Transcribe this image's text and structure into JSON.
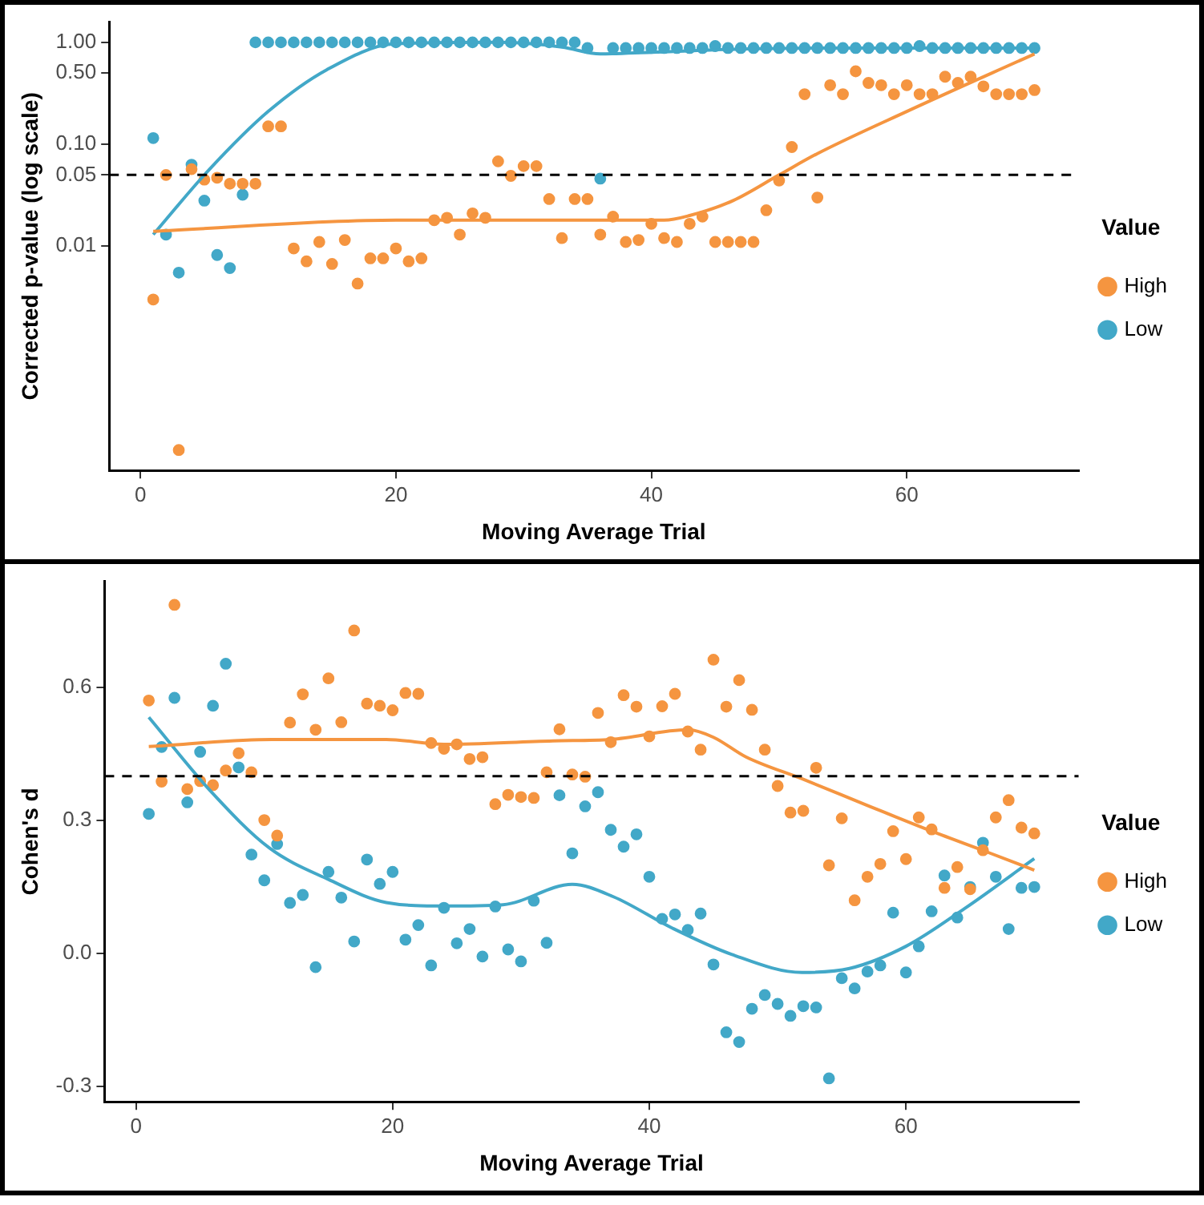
{
  "chart_data": [
    {
      "type": "scatter",
      "xlabel": "Moving Average Trial",
      "ylabel": "Corrected p-value (log scale)",
      "legend_title": "Value",
      "legend": "right",
      "marker": "circle",
      "log": "y",
      "x": [
        1,
        2,
        3,
        4,
        5,
        6,
        7,
        8,
        9,
        10,
        11,
        12,
        13,
        14,
        15,
        16,
        17,
        18,
        19,
        20,
        21,
        22,
        23,
        24,
        25,
        26,
        27,
        28,
        29,
        30,
        31,
        32,
        33,
        34,
        35,
        36,
        37,
        38,
        39,
        40,
        41,
        42,
        43,
        44,
        45,
        46,
        47,
        48,
        49,
        50,
        51,
        52,
        53,
        54,
        55,
        56,
        57,
        58,
        59,
        60,
        61,
        62,
        63,
        64,
        65,
        66,
        67,
        68,
        69,
        70
      ],
      "xlim": [
        -2.45,
        73.45
      ],
      "xticks": [
        0,
        20,
        40,
        60
      ],
      "ylim": [
        6.3e-05,
        1.58
      ],
      "yticks": [
        0.01,
        0.05,
        {
          "value": 0.1,
          "label": "0.10"
        },
        {
          "value": 0.5,
          "label": "0.50"
        },
        {
          "value": 1,
          "label": "1.00"
        }
      ],
      "ref_lines": [
        {
          "axis": "y",
          "value": 0.05,
          "color": "#000000",
          "line_style": "dashed"
        }
      ],
      "series": [
        {
          "name": "High",
          "color": "#f59540",
          "values": [
            0.003,
            0.05,
            0.0001,
            0.057,
            0.045,
            0.047,
            0.041,
            0.041,
            0.041,
            0.15,
            0.15,
            0.0095,
            0.0071,
            0.011,
            0.0067,
            0.0115,
            0.0043,
            0.0076,
            0.0076,
            0.0095,
            0.0071,
            0.0076,
            0.018,
            0.019,
            0.013,
            0.021,
            0.019,
            0.068,
            0.049,
            0.061,
            0.061,
            0.029,
            0.012,
            0.029,
            0.029,
            0.013,
            0.0195,
            0.011,
            0.0115,
            0.0166,
            0.012,
            0.011,
            0.0166,
            0.0195,
            0.011,
            0.011,
            0.011,
            0.011,
            0.0225,
            0.044,
            0.094,
            0.31,
            0.03,
            0.38,
            0.31,
            0.52,
            0.4,
            0.38,
            0.31,
            0.38,
            0.31,
            0.31,
            0.46,
            0.4,
            0.46,
            0.37,
            0.31,
            0.31,
            0.31,
            0.34
          ]
        },
        {
          "name": "Low",
          "color": "#42a8c8",
          "values": [
            0.115,
            0.013,
            0.0055,
            0.063,
            0.028,
            0.0082,
            0.0061,
            0.032,
            1,
            1,
            1,
            1,
            1,
            1,
            1,
            1,
            1,
            1,
            1,
            1,
            1,
            1,
            1,
            1,
            1,
            1,
            1,
            1,
            1,
            1,
            1,
            1,
            1,
            1,
            0.88,
            0.046,
            0.88,
            0.88,
            0.88,
            0.88,
            0.88,
            0.88,
            0.88,
            0.88,
            0.92,
            0.88,
            0.88,
            0.88,
            0.88,
            0.88,
            0.88,
            0.88,
            0.88,
            0.88,
            0.88,
            0.88,
            0.88,
            0.88,
            0.88,
            0.88,
            0.92,
            0.88,
            0.88,
            0.88,
            0.88,
            0.88,
            0.88,
            0.88,
            0.88,
            0.88
          ]
        },
        {
          "type": "line",
          "marker": "none",
          "color": "#f59540",
          "x": [
            1,
            20,
            33,
            41,
            43,
            46.4,
            50,
            53,
            60,
            70
          ],
          "values": [
            0.014,
            0.018,
            0.018,
            0.018,
            0.02,
            0.028,
            0.05,
            0.081,
            0.21,
            0.77
          ]
        },
        {
          "type": "line",
          "marker": "none",
          "color": "#42a8c8",
          "x": [
            1,
            5.3,
            10,
            14.6,
            20,
            28,
            33,
            36,
            40,
            47,
            56,
            70
          ],
          "values": [
            0.013,
            0.055,
            0.21,
            0.54,
            0.97,
            1.0,
            0.9,
            0.77,
            0.8,
            0.86,
            0.88,
            0.88
          ]
        }
      ]
    },
    {
      "type": "scatter",
      "xlabel": "Moving Average Trial",
      "ylabel": "Cohen's d",
      "legend_title": "Value",
      "legend": "right",
      "marker": "circle",
      "x": [
        1,
        2,
        3,
        4,
        5,
        6,
        7,
        8,
        9,
        10,
        11,
        12,
        13,
        14,
        15,
        16,
        17,
        18,
        19,
        20,
        21,
        22,
        23,
        24,
        25,
        26,
        27,
        28,
        29,
        30,
        31,
        32,
        33,
        34,
        35,
        36,
        37,
        38,
        39,
        40,
        41,
        42,
        43,
        44,
        45,
        46,
        47,
        48,
        49,
        50,
        51,
        52,
        53,
        54,
        55,
        56,
        57,
        58,
        59,
        60,
        61,
        62,
        63,
        64,
        65,
        66,
        67,
        68,
        69,
        70
      ],
      "xlim": [
        -2.45,
        73.45
      ],
      "xticks": [
        0,
        20,
        40,
        60
      ],
      "ylim": [
        -0.335,
        0.84
      ],
      "yticks": [
        {
          "value": -0.3,
          "label": "-0.3"
        },
        {
          "value": 0,
          "label": "0.0"
        },
        {
          "value": 0.3,
          "label": "0.3"
        },
        {
          "value": 0.6,
          "label": "0.6"
        }
      ],
      "ref_lines": [
        {
          "axis": "y",
          "value": 0.4,
          "color": "#000000",
          "line_style": "dashed"
        }
      ],
      "series": [
        {
          "name": "High",
          "color": "#f59540",
          "values": [
            0.571,
            0.388,
            0.787,
            0.371,
            0.389,
            0.38,
            0.413,
            0.452,
            0.409,
            0.301,
            0.266,
            0.521,
            0.585,
            0.505,
            0.621,
            0.522,
            0.729,
            0.564,
            0.559,
            0.549,
            0.588,
            0.586,
            0.475,
            0.462,
            0.472,
            0.439,
            0.443,
            0.337,
            0.358,
            0.353,
            0.351,
            0.409,
            0.506,
            0.404,
            0.399,
            0.543,
            0.477,
            0.583,
            0.557,
            0.49,
            0.558,
            0.586,
            0.501,
            0.46,
            0.663,
            0.557,
            0.617,
            0.55,
            0.46,
            0.378,
            0.318,
            0.322,
            0.419,
            0.199,
            0.305,
            0.12,
            0.173,
            0.202,
            0.276,
            0.213,
            0.307,
            0.28,
            0.148,
            0.195,
            0.145,
            0.233,
            0.307,
            0.346,
            0.284,
            0.271
          ]
        },
        {
          "name": "Low",
          "color": "#42a8c8",
          "values": [
            0.315,
            0.466,
            0.577,
            0.341,
            0.455,
            0.559,
            0.654,
            0.42,
            0.223,
            0.165,
            0.247,
            0.114,
            0.132,
            -0.031,
            0.184,
            0.126,
            0.027,
            0.212,
            0.157,
            0.184,
            0.031,
            0.064,
            -0.027,
            0.103,
            0.023,
            0.055,
            -0.007,
            0.106,
            0.009,
            -0.018,
            0.119,
            0.024,
            0.357,
            0.226,
            0.332,
            0.364,
            0.279,
            0.241,
            0.269,
            0.173,
            0.078,
            0.088,
            0.053,
            0.09,
            -0.025,
            -0.178,
            -0.2,
            -0.125,
            -0.094,
            -0.114,
            -0.141,
            -0.119,
            -0.122,
            -0.282,
            -0.056,
            -0.079,
            -0.041,
            -0.027,
            0.092,
            -0.043,
            0.016,
            0.095,
            0.176,
            0.081,
            0.15,
            0.25,
            0.173,
            0.055,
            0.148,
            0.15
          ]
        },
        {
          "type": "line",
          "marker": "none",
          "color": "#f59540",
          "x": [
            1,
            10.6,
            19.5,
            24,
            32.5,
            37,
            43,
            45,
            47.5,
            52,
            57,
            62,
            66.5,
            70
          ],
          "values": [
            0.467,
            0.483,
            0.483,
            0.472,
            0.48,
            0.483,
            0.505,
            0.488,
            0.444,
            0.393,
            0.334,
            0.276,
            0.227,
            0.188
          ]
        },
        {
          "type": "line",
          "marker": "none",
          "color": "#42a8c8",
          "x": [
            1,
            5.8,
            10.4,
            15,
            19.5,
            24,
            28.6,
            34,
            37.2,
            41.8,
            46.4,
            51.9,
            55.6,
            60,
            64.6,
            70
          ],
          "values": [
            0.533,
            0.367,
            0.238,
            0.167,
            0.115,
            0.107,
            0.11,
            0.156,
            0.128,
            0.057,
            -0.002,
            -0.043,
            -0.034,
            0.016,
            0.102,
            0.214
          ]
        }
      ]
    }
  ]
}
